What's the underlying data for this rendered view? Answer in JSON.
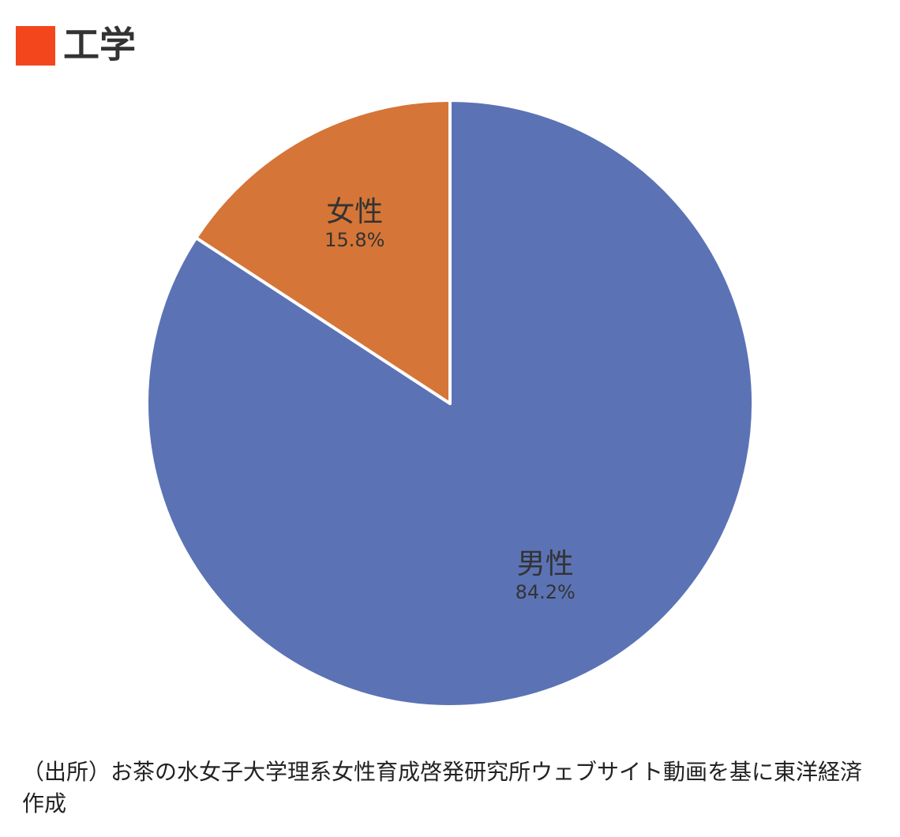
{
  "chart_data": {
    "type": "pie",
    "title": "工学",
    "categories": [
      "男性",
      "女性"
    ],
    "values": [
      84.2,
      15.8
    ],
    "value_labels": [
      "84.2%",
      "15.8%"
    ],
    "colors": [
      "#5b73b5",
      "#d57537"
    ],
    "note": "（出所）お茶の水女子大学理系女性育成啓発研究所ウェブサイト動画を基に東洋経済作成"
  }
}
